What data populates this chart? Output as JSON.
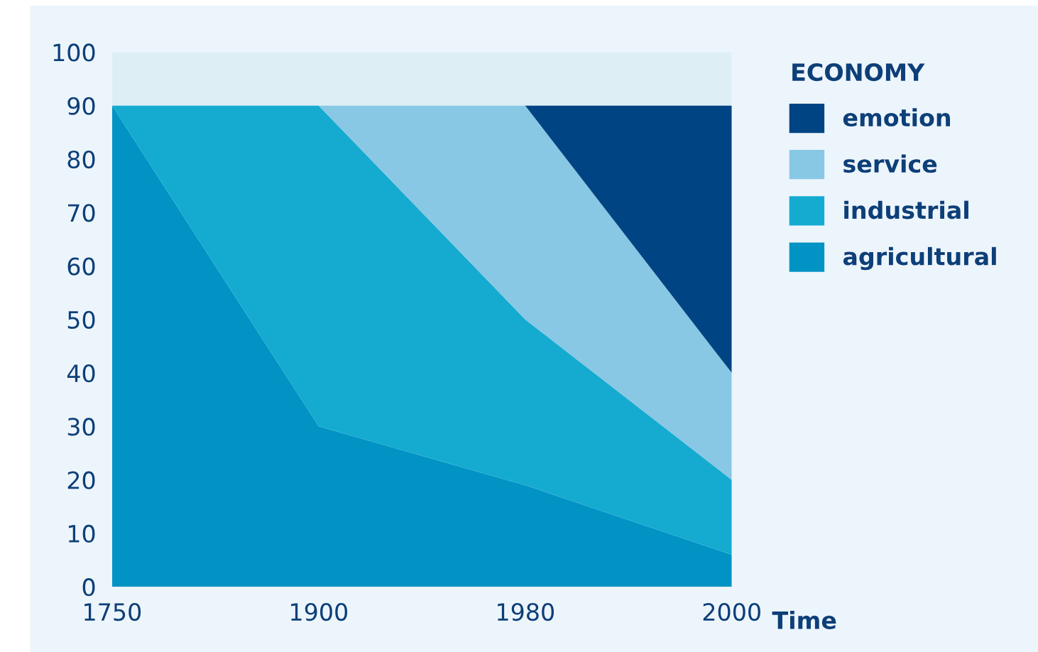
{
  "chart_data": {
    "type": "area",
    "stacked": true,
    "xlabel": "Time",
    "legend_title": "ECONOMY",
    "categories": [
      "1750",
      "1900",
      "1980",
      "2000"
    ],
    "ylim": [
      0,
      100
    ],
    "yticks": [
      0,
      10,
      20,
      30,
      40,
      50,
      60,
      70,
      80,
      90,
      100
    ],
    "grid": false,
    "legend": "top right",
    "bands": [
      {
        "axis": "y",
        "from": 90,
        "to": 100,
        "color": "#deeef5"
      }
    ],
    "series": [
      {
        "name": "agricultural",
        "color": "#0093c3",
        "values": [
          90,
          30,
          19,
          6
        ]
      },
      {
        "name": "industrial",
        "color": "#15abd1",
        "values": [
          0,
          60,
          31,
          14
        ]
      },
      {
        "name": "service",
        "color": "#88c8e4",
        "values": [
          0,
          0,
          40,
          20
        ]
      },
      {
        "name": "emotion",
        "color": "#004483",
        "values": [
          0,
          0,
          0,
          50
        ]
      }
    ]
  }
}
